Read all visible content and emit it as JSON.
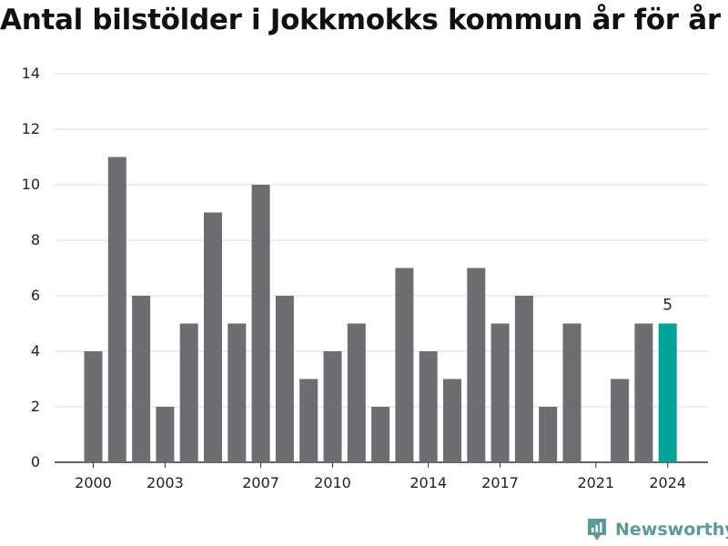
{
  "chart_data": {
    "type": "bar",
    "title": "Antal bilstölder i Jokkmokks kommun år för år",
    "categories": [
      2000,
      2001,
      2002,
      2003,
      2004,
      2005,
      2006,
      2007,
      2008,
      2009,
      2010,
      2011,
      2012,
      2013,
      2014,
      2015,
      2016,
      2017,
      2018,
      2019,
      2020,
      2021,
      2022,
      2023,
      2024
    ],
    "values": [
      4,
      11,
      6,
      2,
      5,
      9,
      5,
      10,
      6,
      3,
      4,
      5,
      2,
      7,
      4,
      3,
      7,
      5,
      6,
      2,
      5,
      0,
      3,
      5,
      5
    ],
    "x_tick_labels": [
      "2000",
      "2003",
      "2007",
      "2010",
      "2014",
      "2017",
      "2021",
      "2024"
    ],
    "y_ticks": [
      0,
      2,
      4,
      6,
      8,
      10,
      12,
      14
    ],
    "ylim": [
      0,
      14
    ],
    "grid": true,
    "highlight": {
      "year": 2024,
      "value_label": "5",
      "color": "#00a398"
    },
    "bar_color": "#6e6d72",
    "xlabel": "",
    "ylabel": ""
  },
  "brand": {
    "name": "Newsworthy",
    "color": "#5a9a97"
  }
}
